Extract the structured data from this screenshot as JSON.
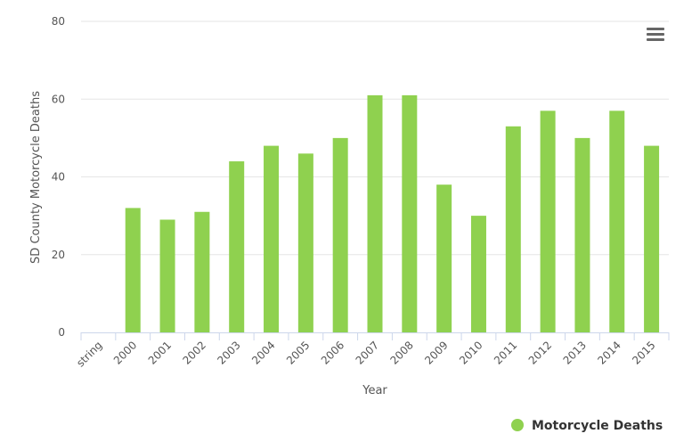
{
  "chart_data": {
    "type": "bar",
    "categories": [
      "string",
      "2000",
      "2001",
      "2002",
      "2003",
      "2004",
      "2005",
      "2006",
      "2007",
      "2008",
      "2009",
      "2010",
      "2011",
      "2012",
      "2013",
      "2014",
      "2015"
    ],
    "series": [
      {
        "name": "Motorcycle Deaths",
        "values": [
          null,
          32,
          29,
          31,
          44,
          48,
          46,
          50,
          61,
          61,
          38,
          30,
          53,
          57,
          50,
          57,
          48
        ]
      }
    ],
    "xlabel": "Year",
    "ylabel": "SD County Motorcycle Deaths",
    "ylim": [
      0,
      80
    ],
    "yticks": [
      0,
      20,
      40,
      60,
      80
    ],
    "grid": true,
    "legend": "bottom-right",
    "colors": {
      "bar": "#8fd14f",
      "grid": "#e6e6e6",
      "axis": "#ccd6eb"
    }
  },
  "menu": {
    "icon": "hamburger-menu-icon"
  }
}
